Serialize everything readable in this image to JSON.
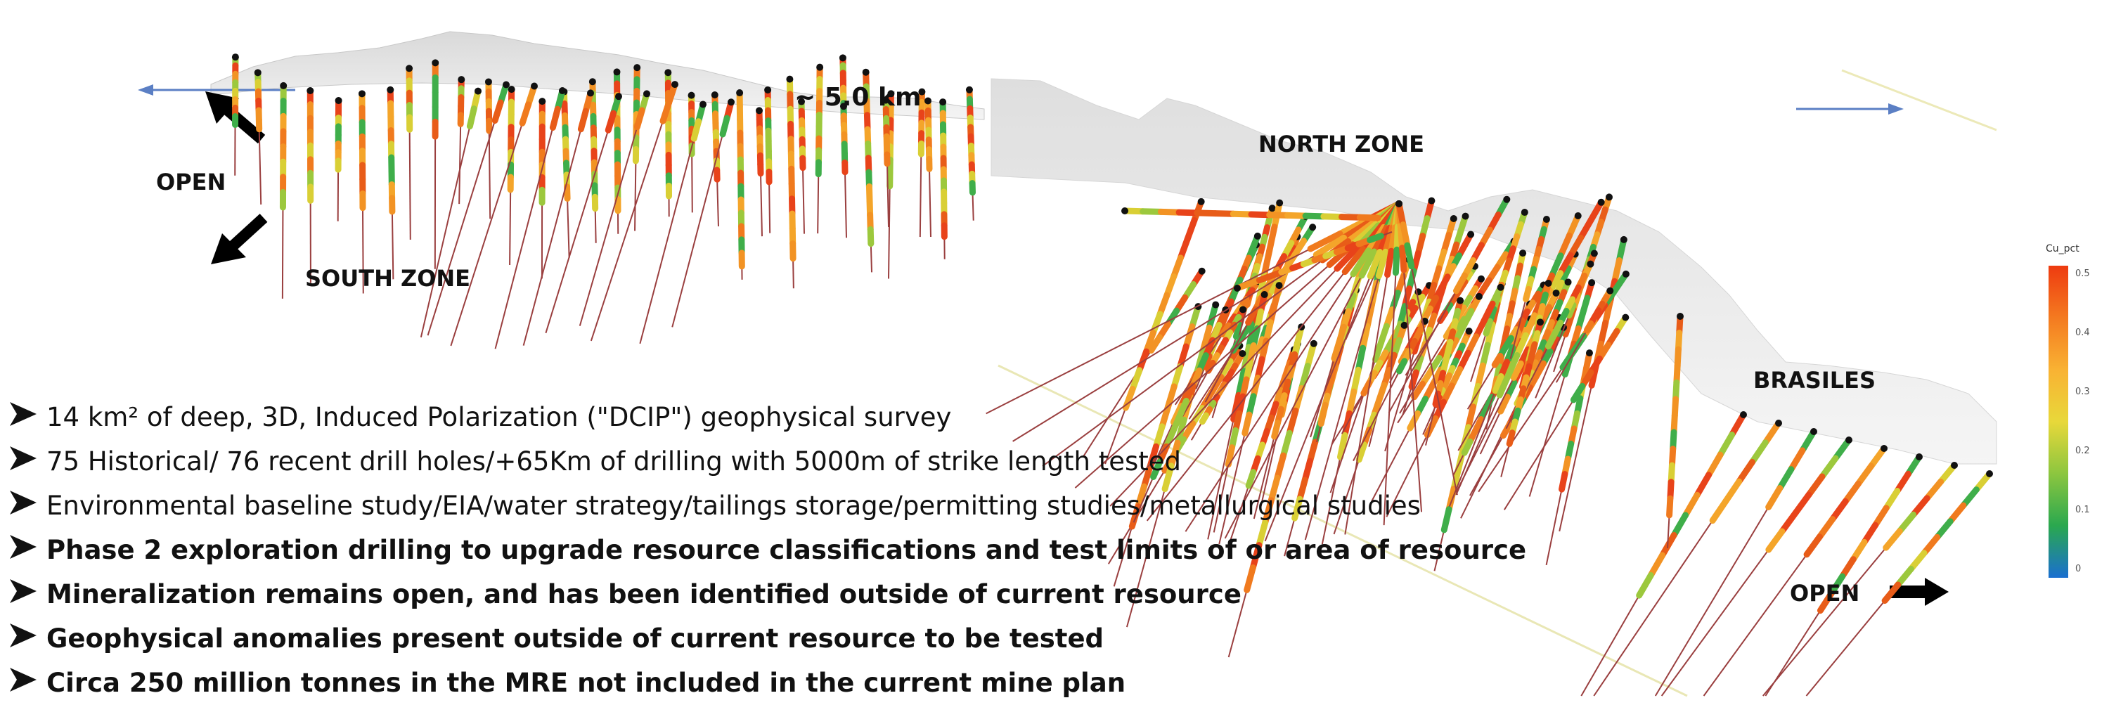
{
  "labels": {
    "scale": "~ 5.0 km",
    "north_zone": "NORTH ZONE",
    "south_zone": "SOUTH ZONE",
    "brasiles": "BRASILES",
    "open_left": "OPEN",
    "open_right": "OPEN"
  },
  "bullets": [
    {
      "text": "14 km² of deep, 3D, Induced Polarization (\"DCIP\") geophysical survey",
      "bold": false
    },
    {
      "text": "75 Historical/ 76 recent drill holes/+65Km of drilling with 5000m of strike length tested",
      "bold": false
    },
    {
      "text": "Environmental baseline study/EIA/water strategy/tailings storage/permitting studies/metallurgical studies",
      "bold": false
    },
    {
      "text": "Phase 2 exploration drilling to upgrade resource classifications and test limits of or area of resource",
      "bold": true
    },
    {
      "text": "Mineralization remains open, and has been  identified outside of current resource",
      "bold": true
    },
    {
      "text": "Geophysical anomalies present outside of current resource to be tested",
      "bold": true
    },
    {
      "text": "Circa 250 million tonnes in the MRE not included in the current mine plan",
      "bold": true
    }
  ],
  "colorbar": {
    "title": "Cu_pct",
    "ticks": [
      "0.5",
      "0.4",
      "0.3",
      "0.2",
      "0.1",
      "0"
    ],
    "colors": [
      "#ee3b10",
      "#f47a20",
      "#f9b233",
      "#e8d83a",
      "#8cc63f",
      "#2aa84f",
      "#1a6fd0"
    ]
  }
}
